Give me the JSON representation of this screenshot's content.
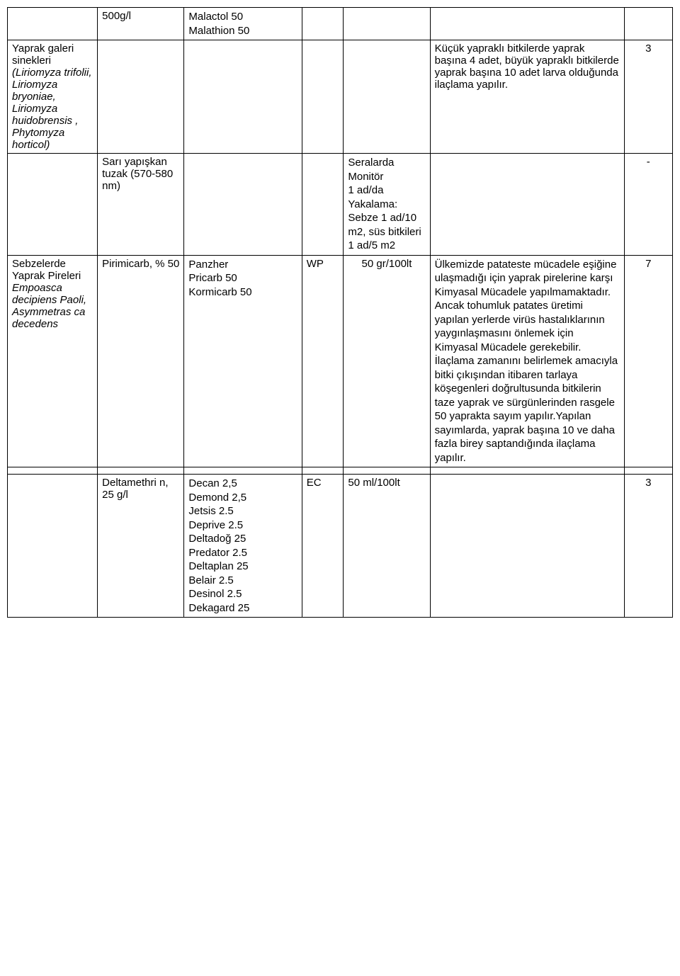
{
  "table": {
    "colWidths": [
      "13%",
      "12.5%",
      "17%",
      "6%",
      "12.5%",
      "28%",
      "7%"
    ],
    "rows": [
      {
        "c0": "",
        "c1": "500g/l",
        "c2": "Malactol 50\nMalathion 50",
        "c3": "",
        "c4": "",
        "c5": "",
        "c6": ""
      },
      {
        "c0_plain": "Yaprak galeri sinekleri",
        "c0_italic": "(Liriomyza trifolii, Liriomyza bryoniae, Liriomyza huidobrensis , Phytomyza horticol)",
        "c1": "",
        "c2": "",
        "c3": "",
        "c4": "",
        "c5": "Küçük yapraklı bitkilerde yaprak başına 4 adet, büyük yapraklı bitkilerde yaprak başına 10 adet larva olduğunda ilaçlama yapılır.",
        "c6": "3"
      },
      {
        "c0": "",
        "c1": "Sarı yapışkan tuzak (570-580 nm)",
        "c2": "",
        "c3": "",
        "c4": "Seralarda Monitör\n1 ad/da Yakalama: Sebze 1 ad/10 m2, süs bitkileri 1 ad/5 m2",
        "c5": "",
        "c6": "-"
      },
      {
        "c0_plain": "Sebzelerde Yaprak Pireleri",
        "c0_italic": "Empoasca decipiens Paoli, Asymmetras ca decedens",
        "c1": "Pirimicarb, % 50",
        "c2": "Panzher\nPricarb 50\nKormicarb 50",
        "c3": "WP",
        "c4": "50 gr/100lt",
        "c5": "Ülkemizde patateste mücadele eşiğine ulaşmadığı için yaprak pirelerine karşı Kimyasal Mücadele yapılmamaktadır. Ancak tohumluk patates üretimi yapılan yerlerde virüs hastalıklarının yaygınlaşmasını önlemek için Kimyasal Mücadele gerekebilir.\nİlaçlama zamanını belirlemek amacıyla bitki çıkışından itibaren tarlaya köşegenleri doğrultusunda bitkilerin taze yaprak ve sürgünlerinden rasgele 50 yaprakta sayım yapılır.Yapılan sayımlarda, yaprak başına 10 ve daha fazla birey saptandığında ilaçlama yapılır.",
        "c6": "7"
      },
      {
        "spacer": true
      },
      {
        "c0": "",
        "c1": "Deltamethri n, 25 g/l",
        "c2": "Decan 2,5\nDemond 2,5\nJetsis 2.5\nDeprive 2.5\nDeltadoğ 25\nPredator 2.5\nDeltaplan 25\nBelair 2.5\nDesinol 2.5\nDekagard 25",
        "c3": "EC",
        "c4": "50 ml/100lt",
        "c5": "",
        "c6": "3"
      }
    ]
  }
}
